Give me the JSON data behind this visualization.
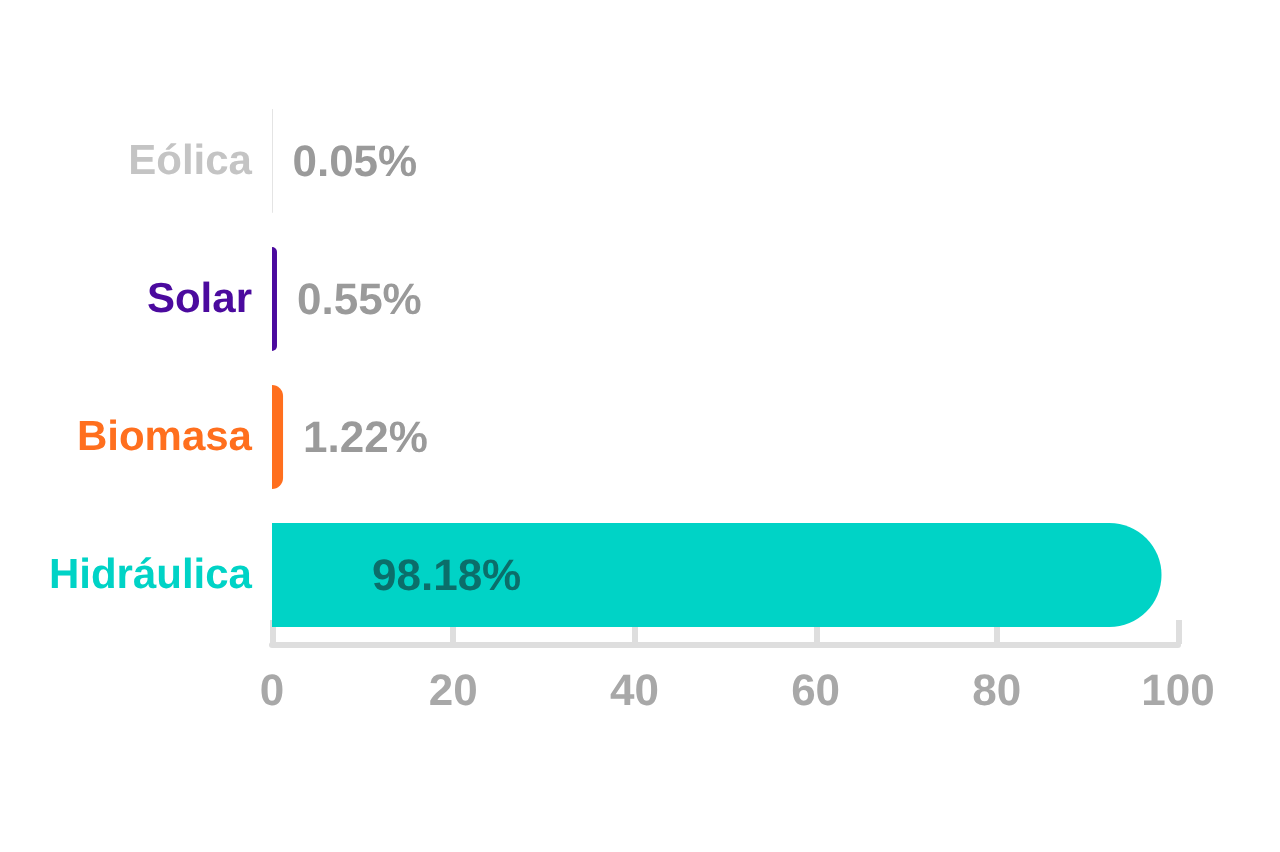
{
  "chart_data": {
    "type": "bar",
    "orientation": "horizontal",
    "categories": [
      "Eólica",
      "Solar",
      "Biomasa",
      "Hidráulica"
    ],
    "values": [
      0.05,
      0.55,
      1.22,
      98.18
    ],
    "colors": [
      "#c4c4c4",
      "#4b0a9e",
      "#ff6f1e",
      "#00d3c6"
    ],
    "value_labels": [
      "0.05%",
      "0.55%",
      "1.22%",
      "98.18%"
    ],
    "xlim": [
      0,
      100
    ],
    "xticks": [
      0,
      20,
      40,
      60,
      80,
      100
    ],
    "grid": false
  }
}
